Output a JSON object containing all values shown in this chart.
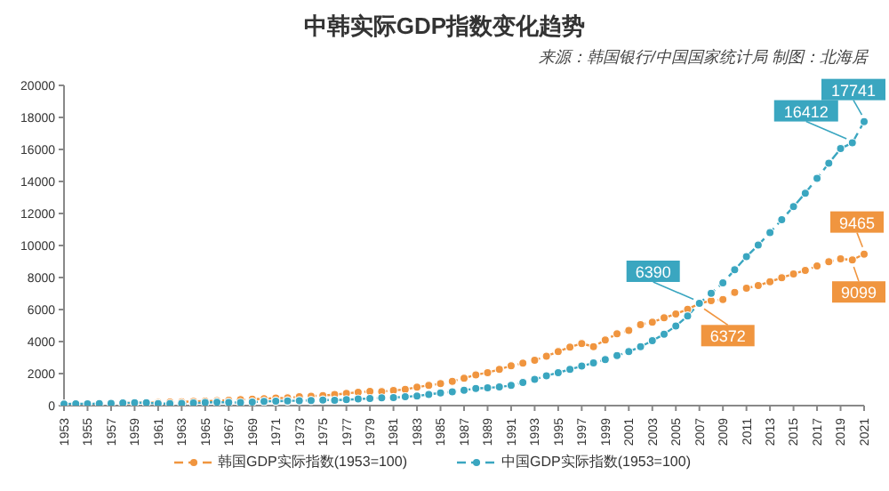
{
  "chart_data": {
    "type": "line",
    "title": "中韩实际GDP指数变化趋势",
    "annotations": [
      "来源：韩国银行/中国国家统计局 制图：北海居"
    ],
    "x": [
      1953,
      1954,
      1955,
      1956,
      1957,
      1958,
      1959,
      1960,
      1961,
      1962,
      1963,
      1964,
      1965,
      1966,
      1967,
      1968,
      1969,
      1970,
      1971,
      1972,
      1973,
      1974,
      1975,
      1976,
      1977,
      1978,
      1979,
      1980,
      1981,
      1982,
      1983,
      1984,
      1985,
      1986,
      1987,
      1988,
      1989,
      1990,
      1991,
      1992,
      1993,
      1994,
      1995,
      1996,
      1997,
      1998,
      1999,
      2000,
      2001,
      2002,
      2003,
      2004,
      2005,
      2006,
      2007,
      2008,
      2009,
      2010,
      2011,
      2012,
      2013,
      2014,
      2015,
      2016,
      2017,
      2018,
      2019,
      2020,
      2021
    ],
    "series": [
      {
        "name": "韩国GDP实际指数(1953=100)",
        "color": "#f0953f",
        "values": [
          null,
          null,
          null,
          null,
          null,
          150,
          170,
          180,
          200,
          220,
          240,
          260,
          280,
          310,
          340,
          370,
          400,
          430,
          470,
          490,
          550,
          590,
          630,
          690,
          760,
          830,
          890,
          880,
          940,
          1020,
          1150,
          1270,
          1370,
          1520,
          1710,
          1920,
          2060,
          2260,
          2490,
          2650,
          2830,
          3090,
          3380,
          3650,
          3880,
          3680,
          4100,
          4480,
          4700,
          5060,
          5210,
          5480,
          5720,
          6020,
          6372,
          6560,
          6620,
          7070,
          7330,
          7500,
          7740,
          7990,
          8220,
          8450,
          8720,
          8980,
          9170,
          9099,
          9465
        ],
        "value_labels": [
          null,
          null,
          null,
          null,
          null,
          null,
          null,
          null,
          null,
          null,
          null,
          null,
          null,
          null,
          null,
          null,
          null,
          null,
          null,
          null,
          null,
          null,
          null,
          null,
          null,
          null,
          null,
          null,
          null,
          null,
          null,
          null,
          null,
          null,
          null,
          null,
          null,
          null,
          null,
          null,
          null,
          null,
          null,
          null,
          null,
          null,
          null,
          null,
          null,
          null,
          null,
          null,
          null,
          null,
          "6372",
          null,
          null,
          null,
          null,
          null,
          null,
          null,
          null,
          null,
          null,
          null,
          null,
          "9099",
          "9465"
        ]
      },
      {
        "name": "中国GDP实际指数(1953=100)",
        "color": "#3aa6c0",
        "values": [
          100,
          110,
          110,
          130,
          140,
          160,
          180,
          180,
          130,
          120,
          140,
          160,
          190,
          210,
          200,
          190,
          220,
          260,
          280,
          290,
          310,
          320,
          350,
          340,
          370,
          410,
          440,
          480,
          500,
          550,
          600,
          700,
          790,
          860,
          960,
          1070,
          1110,
          1160,
          1260,
          1440,
          1640,
          1860,
          2060,
          2260,
          2470,
          2670,
          2870,
          3120,
          3370,
          3680,
          4050,
          4460,
          4970,
          5600,
          6390,
          7010,
          7670,
          8480,
          9300,
          10030,
          10810,
          11610,
          12430,
          13270,
          14190,
          15140,
          16050,
          16412,
          17741
        ],
        "value_labels": [
          null,
          null,
          null,
          null,
          null,
          null,
          null,
          null,
          null,
          null,
          null,
          null,
          null,
          null,
          null,
          null,
          null,
          null,
          null,
          null,
          null,
          null,
          null,
          null,
          null,
          null,
          null,
          null,
          null,
          null,
          null,
          null,
          null,
          null,
          null,
          null,
          null,
          null,
          null,
          null,
          null,
          null,
          null,
          null,
          null,
          null,
          null,
          null,
          null,
          null,
          null,
          null,
          null,
          null,
          "6390",
          null,
          null,
          null,
          null,
          null,
          null,
          null,
          null,
          null,
          null,
          null,
          null,
          "16412",
          "17741"
        ]
      }
    ],
    "xlim": [
      1953,
      2021
    ],
    "xticks": [
      1953,
      1955,
      1957,
      1959,
      1961,
      1963,
      1965,
      1967,
      1969,
      1971,
      1973,
      1975,
      1977,
      1979,
      1981,
      1983,
      1985,
      1987,
      1989,
      1991,
      1993,
      1995,
      1997,
      1999,
      2001,
      2003,
      2005,
      2007,
      2009,
      2011,
      2013,
      2015,
      2017,
      2019,
      2021
    ],
    "ylim": [
      0,
      20000
    ],
    "yticks": [
      0,
      2000,
      4000,
      6000,
      8000,
      10000,
      12000,
      14000,
      16000,
      18000,
      20000
    ],
    "grid": false,
    "legend": "bottom",
    "marker": "circle",
    "line_style": "dashed"
  }
}
